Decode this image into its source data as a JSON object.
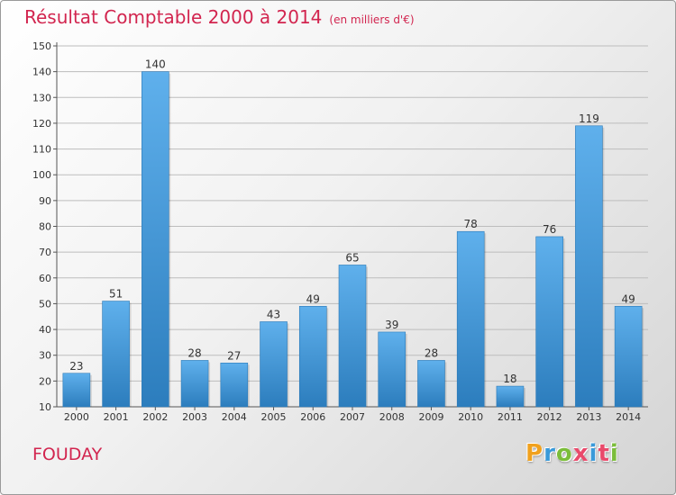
{
  "title": "Résultat Comptable 2000 à 2014",
  "unit_note": "(en milliers d'€)",
  "town": "FOUDAY",
  "brand": {
    "text": "Proxiti",
    "letter_colors": [
      "#f0a11e",
      "#3a9ad9",
      "#7bbd3a",
      "#e94a6b",
      "#3a9ad9",
      "#e94a6b",
      "#7bbd3a"
    ]
  },
  "colors": {
    "accent": "#d2254f",
    "bar_light": "#5fb0ec",
    "bar_dark": "#2c7dbd",
    "grid": "#bdbdbd",
    "axis_text": "#333333"
  },
  "chart_data": {
    "type": "bar",
    "categories": [
      "2000",
      "2001",
      "2002",
      "2003",
      "2004",
      "2005",
      "2006",
      "2007",
      "2008",
      "2009",
      "2010",
      "2011",
      "2012",
      "2013",
      "2014"
    ],
    "values": [
      23,
      51,
      140,
      28,
      27,
      43,
      49,
      65,
      39,
      28,
      78,
      18,
      76,
      119,
      49
    ],
    "data_labels": [
      "23",
      "51",
      "140",
      "28",
      "27",
      "43",
      "49",
      "65",
      "39",
      "28",
      "78",
      "18",
      "76",
      "119",
      "49"
    ],
    "y_ticks": [
      "10",
      "20",
      "30",
      "40",
      "50",
      "60",
      "70",
      "80",
      "90",
      "100",
      "110",
      "120",
      "130",
      "140",
      "150"
    ],
    "title": "Résultat Comptable 2000 à 2014",
    "xlabel": "",
    "ylabel": "",
    "ylim": [
      10,
      150
    ],
    "grid": true,
    "legend": "none"
  }
}
